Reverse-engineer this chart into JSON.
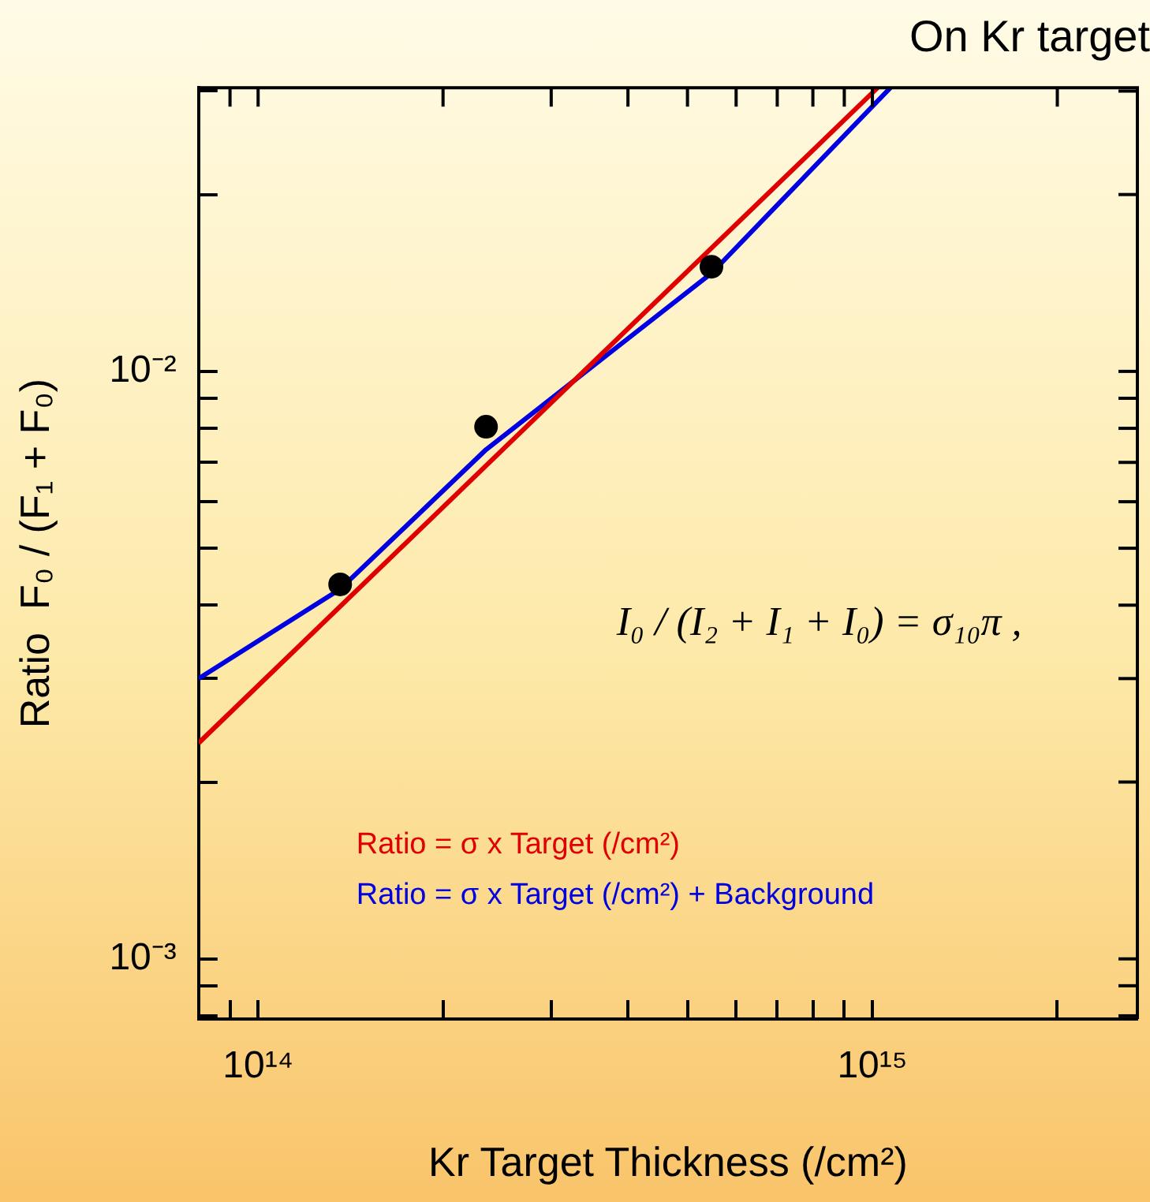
{
  "chart_data": {
    "type": "line",
    "title": "On Kr target",
    "xlabel": "Kr Target Thickness (/cm²)",
    "ylabel": "Ratio  F₀ / (F₁ + F₀)",
    "log": "xy",
    "grid": false,
    "legend": "bottom left",
    "line_style": "solid",
    "xlim": [
      80000000000000.0,
      2700000000000000.0
    ],
    "ylim": [
      0.00079,
      0.0304
    ],
    "xticks": [
      {
        "value": 90000000000000.0,
        "label": null
      },
      {
        "value": 100000000000000.0,
        "label": "10¹⁴"
      },
      {
        "value": 200000000000000.0,
        "label": null
      },
      {
        "value": 300000000000000.0,
        "label": null
      },
      {
        "value": 400000000000000.0,
        "label": null
      },
      {
        "value": 500000000000000.0,
        "label": null
      },
      {
        "value": 600000000000000.0,
        "label": null
      },
      {
        "value": 700000000000000.0,
        "label": null
      },
      {
        "value": 800000000000000.0,
        "label": null
      },
      {
        "value": 900000000000000.0,
        "label": null
      },
      {
        "value": 1000000000000000.0,
        "label": "10¹⁵"
      },
      {
        "value": 2000000000000000.0,
        "label": null
      }
    ],
    "yticks": [
      {
        "value": 0.0008,
        "label": null
      },
      {
        "value": 0.0009,
        "label": null
      },
      {
        "value": 0.001,
        "label": "10⁻³"
      },
      {
        "value": 0.002,
        "label": null
      },
      {
        "value": 0.003,
        "label": null
      },
      {
        "value": 0.004,
        "label": null
      },
      {
        "value": 0.005,
        "label": null
      },
      {
        "value": 0.006,
        "label": null
      },
      {
        "value": 0.007,
        "label": null
      },
      {
        "value": 0.008,
        "label": null
      },
      {
        "value": 0.009,
        "label": null
      },
      {
        "value": 0.01,
        "label": "10⁻²"
      },
      {
        "value": 0.02,
        "label": null
      },
      {
        "value": 0.03,
        "label": null
      }
    ],
    "series": [
      {
        "type": "scatter",
        "marker": "circle",
        "color": "#000000",
        "x": [
          136000000000000.0,
          235000000000000.0,
          547000000000000.0
        ],
        "values": [
          0.00434,
          0.00805,
          0.01507
        ]
      },
      {
        "type": "line",
        "name": "Ratio = σ x Target (/cm²)",
        "color": "#e00000",
        "x": [
          80000000000000.0,
          1020000000000000.0
        ],
        "values": [
          0.00233,
          0.0304
        ]
      },
      {
        "type": "line",
        "name": "Ratio = σ x Target (/cm²) + Background",
        "color": "#0000e0",
        "x": [
          80000000000000.0,
          136000000000000.0,
          235000000000000.0,
          547000000000000.0,
          1070000000000000.0
        ],
        "values": [
          0.003,
          0.00426,
          0.00736,
          0.01469,
          0.0304
        ]
      }
    ],
    "annotations": [
      "I₀ / (I₂ + I₁ + I₀) = σ₁₀π ,"
    ]
  }
}
